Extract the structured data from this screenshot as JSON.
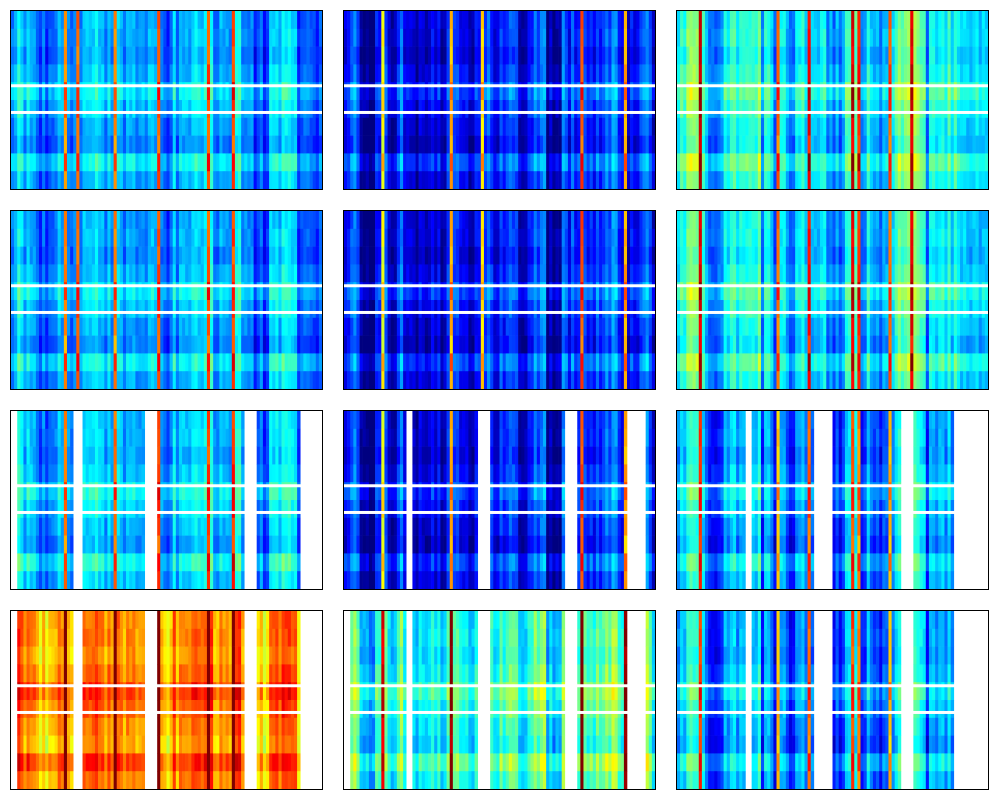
{
  "chart_data": {
    "type": "heatmap",
    "layout": "4x3 grid",
    "colormap": "jet",
    "value_range": [
      0,
      1
    ],
    "rows": 100,
    "columns": 200,
    "missing_rows": [
      42,
      57
    ],
    "panels": [
      {
        "mean_level": 0.3,
        "missing_columns": []
      },
      {
        "mean_level": 0.14,
        "missing_columns": []
      },
      {
        "mean_level": 0.4,
        "missing_columns": []
      },
      {
        "mean_level": 0.3,
        "missing_columns": []
      },
      {
        "mean_level": 0.14,
        "missing_columns": []
      },
      {
        "mean_level": 0.38,
        "missing_columns": []
      },
      {
        "mean_level": 0.32,
        "missing_columns": [
          [
            0,
            4
          ],
          [
            40,
            45
          ],
          [
            85,
            93
          ],
          [
            150,
            158
          ],
          [
            185,
            200
          ]
        ]
      },
      {
        "mean_level": 0.14,
        "missing_columns": [
          [
            0,
            0
          ],
          [
            40,
            44
          ],
          [
            86,
            94
          ],
          [
            142,
            150
          ],
          [
            181,
            194
          ]
        ]
      },
      {
        "mean_level": 0.3,
        "missing_columns": [
          [
            0,
            0
          ],
          [
            44,
            48
          ],
          [
            88,
            100
          ],
          [
            143,
            152
          ],
          [
            178,
            200
          ]
        ]
      },
      {
        "mean_level": 0.75,
        "missing_columns": [
          [
            0,
            4
          ],
          [
            40,
            45
          ],
          [
            85,
            93
          ],
          [
            150,
            158
          ],
          [
            185,
            200
          ]
        ]
      },
      {
        "mean_level": 0.42,
        "missing_columns": [
          [
            0,
            4
          ],
          [
            40,
            44
          ],
          [
            86,
            94
          ],
          [
            142,
            150
          ],
          [
            181,
            194
          ]
        ]
      },
      {
        "mean_level": 0.3,
        "missing_columns": [
          [
            0,
            0
          ],
          [
            44,
            48
          ],
          [
            88,
            100
          ],
          [
            143,
            152
          ],
          [
            178,
            200
          ]
        ]
      }
    ]
  }
}
